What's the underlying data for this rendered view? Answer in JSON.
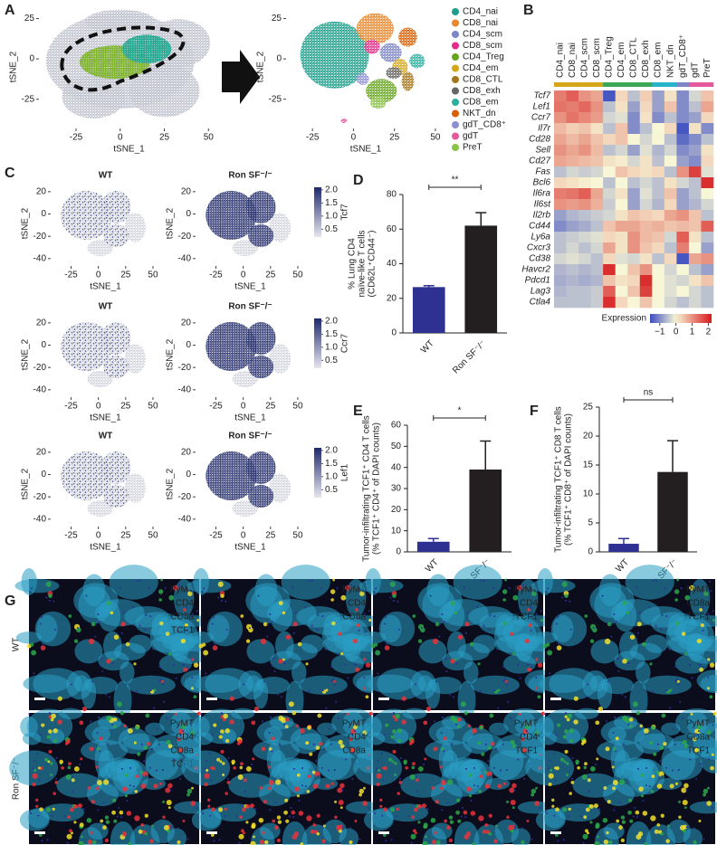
{
  "chart_data": [
    {
      "type": "embedding",
      "panel": "A",
      "xlabel": "tSNE_1",
      "ylabel": "tSNE_2",
      "xlim": [
        -45,
        55
      ],
      "ylim": [
        -42,
        32
      ],
      "xticks": [
        -25,
        0,
        25,
        50
      ],
      "yticks": [
        -25,
        0,
        25
      ]
    },
    {
      "type": "embedding",
      "xlabel": "tSNE_1",
      "ylabel": "tSNE_2",
      "xlim": [
        -40,
        55
      ],
      "ylim": [
        -42,
        32
      ],
      "xticks": [
        -25,
        0,
        25,
        50
      ],
      "yticks": [
        -25,
        0,
        25
      ],
      "series": [
        {
          "name": "CD4_nai",
          "color": "#1b9e8a"
        },
        {
          "name": "CD8_nai",
          "color": "#e8872c"
        },
        {
          "name": "CD4_scm",
          "color": "#7d86c6"
        },
        {
          "name": "CD8_scm",
          "color": "#e7298a"
        },
        {
          "name": "CD4_Treg",
          "color": "#66a61e"
        },
        {
          "name": "CD4_em",
          "color": "#d6a619"
        },
        {
          "name": "CD8_CTL",
          "color": "#a6761d"
        },
        {
          "name": "CD8_exh",
          "color": "#666666"
        },
        {
          "name": "CD8_em",
          "color": "#2bb0a0"
        },
        {
          "name": "NKT_dn",
          "color": "#d95f02"
        },
        {
          "name": "gdT_CD8⁺",
          "color": "#8d8fd0"
        },
        {
          "name": "gdT",
          "color": "#e55a9c"
        },
        {
          "name": "PreT",
          "color": "#8bc34a"
        }
      ]
    },
    {
      "type": "heatmap",
      "panel": "B",
      "columns": [
        "CD4_nai",
        "CD8_nai",
        "CD4_scm",
        "CD8_scm",
        "CD4_Treg",
        "CD4_em",
        "CD8_CTL",
        "CD8_exh",
        "CD8_em",
        "NKT_dn",
        "gdT_CD8⁺",
        "gdT",
        "PreT"
      ],
      "column_colors": [
        "#d6a619",
        "#d6a619",
        "#d6a619",
        "#d6a619",
        "#3aa858",
        "#3aa858",
        "#3aa858",
        "#3aa858",
        "#27b3c9",
        "#27b3c9",
        "#7d86c6",
        "#e55a9c",
        "#e55a9c"
      ],
      "rows": [
        "Tcf7",
        "Lef1",
        "Ccr7",
        "Il7r",
        "Cd28",
        "Sell",
        "Cd27",
        "Fas",
        "Bcl6",
        "Il6ra",
        "Il6st",
        "Il2rb",
        "Cd44",
        "Ly6a",
        "Cxcr3",
        "Cd38",
        "Havcr2",
        "Pdcd1",
        "Lag3",
        "Ctla4"
      ],
      "values": [
        [
          1.2,
          1.5,
          1.0,
          0.8,
          -1.5,
          0.3,
          -0.5,
          0.4,
          -0.8,
          0.2,
          -1,
          -0.3,
          0.5
        ],
        [
          1.3,
          1.2,
          1.4,
          1.0,
          -0.5,
          0.2,
          -0.8,
          0.3,
          -0.8,
          0.5,
          -1,
          -0.5,
          0.8
        ],
        [
          1.0,
          1.3,
          1.1,
          0.9,
          -0.3,
          -0.2,
          -1,
          0.2,
          -1,
          -0.5,
          -1,
          -0.8,
          0.3
        ],
        [
          0.6,
          0.4,
          0.5,
          0.2,
          -0.5,
          0.5,
          -1,
          -0.5,
          0,
          0.3,
          -1.5,
          0.2,
          -1
        ],
        [
          0.8,
          0.6,
          0.8,
          0.5,
          0.3,
          0.5,
          0,
          -0.3,
          0,
          -0.5,
          -1.3,
          -1,
          -0.5
        ],
        [
          1.0,
          0.8,
          1.0,
          0.6,
          -0.5,
          -0.3,
          -0.8,
          -0.2,
          -0.6,
          -0.3,
          -1,
          -0.8,
          0.2
        ],
        [
          0.8,
          0.7,
          0.6,
          0.5,
          0.2,
          0.1,
          -0.3,
          0.2,
          -0.5,
          0,
          -0.8,
          -1,
          0.3
        ],
        [
          -0.5,
          -0.3,
          -0.4,
          -0.3,
          0,
          0.5,
          0.3,
          0.2,
          0.3,
          -0.5,
          1.0,
          1.8,
          -0.2
        ],
        [
          0.3,
          0.2,
          0.1,
          0,
          -0.5,
          0,
          -0.5,
          -0.3,
          -0.5,
          0.2,
          -0.3,
          -0.5,
          2.0
        ],
        [
          1.2,
          1.3,
          1.5,
          0.8,
          -0.3,
          0.2,
          -0.8,
          -0.2,
          -0.5,
          0.5,
          -0.8,
          -0.5,
          0
        ],
        [
          1.0,
          0.9,
          1.0,
          0.7,
          -0.4,
          0,
          -0.8,
          -0.3,
          -0.6,
          0.3,
          -0.8,
          -0.6,
          -0.3
        ],
        [
          -0.8,
          -0.6,
          -0.5,
          -0.4,
          -0.3,
          0.2,
          0.5,
          0.4,
          0.3,
          0.8,
          1.0,
          0.5,
          -0.5
        ],
        [
          -1,
          -0.8,
          -0.7,
          -0.5,
          0.5,
          0.8,
          0.8,
          0.6,
          0.7,
          0.5,
          0.6,
          0.5,
          1.5
        ],
        [
          -0.5,
          -0.4,
          -0.3,
          -0.2,
          0.3,
          0.2,
          1.0,
          0.6,
          0.5,
          -0.3,
          1.5,
          0.2,
          -0.5
        ],
        [
          -0.5,
          -0.3,
          -0.5,
          -0.3,
          0.8,
          0.2,
          1.0,
          0.5,
          0.3,
          -0.5,
          1.2,
          0,
          -0.8
        ],
        [
          -0.3,
          -0.2,
          -0.3,
          -0.5,
          0.3,
          -0.2,
          -0.3,
          0.2,
          -0.5,
          0.3,
          -1.5,
          0.8,
          1.0
        ],
        [
          -0.6,
          -0.5,
          -0.6,
          -0.5,
          2.0,
          0,
          0.5,
          1.0,
          0,
          -0.3,
          0,
          -0.5,
          -0.8
        ],
        [
          -0.7,
          -0.6,
          -0.7,
          -0.6,
          0.5,
          0.2,
          0.3,
          2.0,
          0,
          -0.2,
          -0.3,
          0.2,
          0.5
        ],
        [
          -0.6,
          -0.5,
          -0.5,
          -0.4,
          1.5,
          0,
          0.5,
          1.8,
          0,
          -0.2,
          0,
          -0.3,
          -0.5
        ],
        [
          -0.5,
          -0.5,
          -0.5,
          -0.4,
          2.0,
          0.3,
          0,
          0.5,
          0,
          -0.3,
          -0.5,
          -0.3,
          -0.5
        ]
      ],
      "clim": [
        -1.6,
        2.2
      ],
      "colorbar_label": "Expression",
      "colorbar_ticks": [
        {
          "value": -1,
          "label": "−1"
        },
        0,
        1,
        2
      ]
    },
    {
      "type": "embedding",
      "panel": "C",
      "title": "WT",
      "xlabel": "tSNE_1",
      "ylabel": "tSNE_2",
      "xlim": [
        -42,
        55
      ],
      "ylim": [
        -45,
        28
      ],
      "xticks": [
        -25,
        0,
        25,
        50
      ],
      "yticks": [
        -40,
        -20,
        0,
        20
      ]
    },
    {
      "type": "embedding",
      "title": "Ron SF⁻/⁻",
      "xlabel": "tSNE_1",
      "ylabel": "tSNE_2",
      "xlim": [
        -42,
        55
      ],
      "ylim": [
        -45,
        28
      ],
      "xticks": [
        -25,
        0,
        25,
        50
      ],
      "yticks": [
        -40,
        -20,
        0,
        20
      ],
      "gene": "Tcf7",
      "colorbar_lim": [
        0.2,
        2.1
      ],
      "colorbar_ticks": [
        {
          "value": 2,
          "label": "2.0"
        },
        1.5,
        {
          "value": 1,
          "label": "1.0"
        },
        0.5
      ]
    },
    {
      "type": "embedding",
      "title": "WT",
      "xlabel": "tSNE_1",
      "ylabel": "tSNE_2",
      "xlim": [
        -42,
        55
      ],
      "ylim": [
        -45,
        28
      ],
      "xticks": [
        -25,
        0,
        25,
        50
      ],
      "yticks": [
        -40,
        -20,
        0,
        20
      ]
    },
    {
      "type": "embedding",
      "title": "Ron SF⁻/⁻",
      "xlabel": "tSNE_1",
      "ylabel": "tSNE_2",
      "xlim": [
        -42,
        55
      ],
      "ylim": [
        -45,
        28
      ],
      "xticks": [
        -25,
        0,
        25,
        50
      ],
      "yticks": [
        -40,
        -20,
        0,
        20
      ],
      "gene": "Ccr7",
      "colorbar_lim": [
        0.2,
        2.1
      ],
      "colorbar_ticks": [
        {
          "value": 2,
          "label": "2.0"
        },
        1.5,
        {
          "value": 1,
          "label": "1.0"
        },
        0.5
      ]
    },
    {
      "type": "embedding",
      "title": "WT",
      "xlabel": "tSNE_1",
      "ylabel": "tSNE_2",
      "xlim": [
        -42,
        55
      ],
      "ylim": [
        -45,
        28
      ],
      "xticks": [
        -25,
        0,
        25,
        50
      ],
      "yticks": [
        -40,
        -20,
        0,
        20
      ]
    },
    {
      "type": "embedding",
      "title": "Ron SF⁻/⁻",
      "xlabel": "tSNE_1",
      "ylabel": "tSNE_2",
      "xlim": [
        -42,
        55
      ],
      "ylim": [
        -45,
        28
      ],
      "xticks": [
        -25,
        0,
        25,
        50
      ],
      "yticks": [
        -40,
        -20,
        0,
        20
      ],
      "gene": "Lef1",
      "colorbar_lim": [
        0.2,
        2.1
      ],
      "colorbar_ticks": [
        {
          "value": 2,
          "label": "2.0"
        },
        1.5,
        {
          "value": 1,
          "label": "1.0"
        },
        0.5
      ]
    },
    {
      "type": "bar",
      "panel": "D",
      "ylabel": [
        "% Lung CD4",
        "naïve-like T cells",
        "(CD62L⁺CD44⁻)"
      ],
      "categories": [
        "WT",
        "Ron SF⁻/⁻"
      ],
      "values": [
        26.5,
        62
      ],
      "errors": [
        0.8,
        7.5
      ],
      "colors": [
        "#2e3192",
        "#231f20"
      ],
      "ylim": [
        0,
        80
      ],
      "yticks": [
        0,
        20,
        40,
        60,
        80
      ],
      "significance": "**"
    },
    {
      "type": "bar",
      "panel": "E",
      "ylabel": [
        "Tumor-infiltrating TCF1⁺ CD4 T cells",
        "(% TCF1⁺ CD4⁺ of DAPI counts)"
      ],
      "categories": [
        "WT",
        "Ron SF⁻/⁻"
      ],
      "values": [
        4.8,
        39
      ],
      "errors": [
        1.5,
        13.5
      ],
      "colors": [
        "#2e3192",
        "#231f20"
      ],
      "ylim": [
        0,
        60
      ],
      "yticks": [
        0,
        10,
        20,
        30,
        40,
        50,
        60
      ],
      "significance": "*"
    },
    {
      "type": "bar",
      "panel": "F",
      "ylabel": [
        "Tumor-infiltrating TCF1⁺ CD8 T cells",
        "(% TCF1⁺ CD8⁺ of DAPI counts)"
      ],
      "categories": [
        "WT",
        "Ron SF⁻/⁻"
      ],
      "values": [
        1.4,
        13.8
      ],
      "errors": [
        0.9,
        5.4
      ],
      "colors": [
        "#2e3192",
        "#231f20"
      ],
      "ylim": [
        0,
        25
      ],
      "yticks": [
        0,
        5,
        10,
        15,
        20,
        25
      ],
      "significance": "ns"
    },
    {
      "type": "micrograph",
      "panel": "G",
      "rows": [
        "WT",
        "Ron SF⁻/⁻"
      ],
      "channels": [
        {
          "name": "PyMT",
          "color": "#35c3ee"
        },
        {
          "name": "CD4",
          "color": "#e8333a"
        },
        {
          "name": "CD8a",
          "color": "#f2e02a"
        },
        {
          "name": "TCF1",
          "color": "#2aa84a"
        }
      ],
      "panels": [
        [
          [
            "PyMT",
            "CD4",
            "CD8a",
            "TCF1"
          ],
          [
            "PyMT",
            "CD4",
            "CD8a"
          ],
          [
            "PyMT",
            "CD4",
            "TCF1"
          ],
          [
            "PyMT",
            "CD8a",
            "TCF1"
          ]
        ],
        [
          [
            "PyMT",
            "CD4",
            "CD8a",
            "TCF1"
          ],
          [
            "PyMT",
            "CD4",
            "CD8a"
          ],
          [
            "PyMT",
            "CD4",
            "TCF1"
          ],
          [
            "PyMT",
            "CD8a",
            "TCF1"
          ]
        ]
      ]
    }
  ]
}
